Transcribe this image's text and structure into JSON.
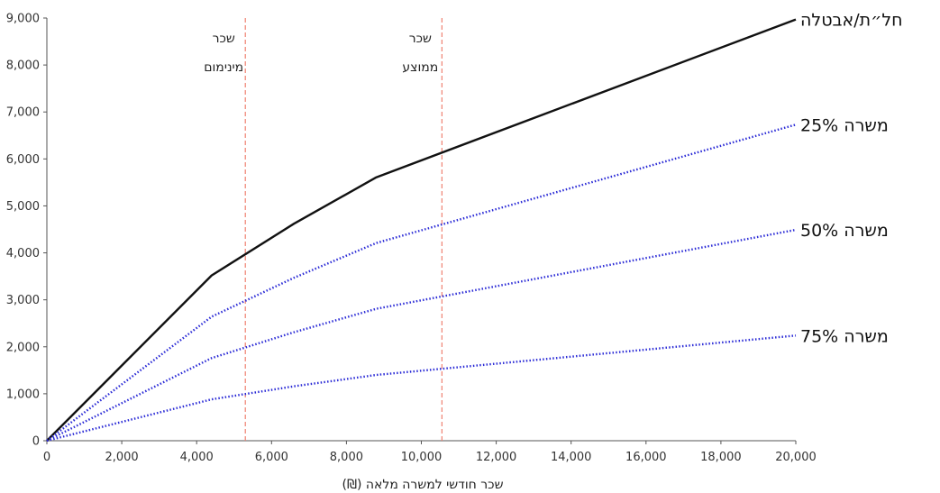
{
  "chart_data": {
    "type": "line",
    "title": "",
    "xlabel": "שכר חודשי למשרה מלאה (₪)",
    "ylabel": "",
    "xlim": [
      0,
      20000
    ],
    "ylim": [
      0,
      9000
    ],
    "x_ticks": [
      0,
      2000,
      4000,
      6000,
      8000,
      10000,
      12000,
      14000,
      16000,
      18000,
      20000
    ],
    "x_tick_labels": [
      "0",
      "2,000",
      "4,000",
      "6,000",
      "8,000",
      "10,000",
      "12,000",
      "14,000",
      "16,000",
      "18,000",
      "20,000"
    ],
    "y_ticks": [
      0,
      1000,
      2000,
      3000,
      4000,
      5000,
      6000,
      7000,
      8000,
      9000
    ],
    "y_tick_labels": [
      "0",
      "1,000",
      "2,000",
      "3,000",
      "4,000",
      "5,000",
      "6,000",
      "7,000",
      "8,000",
      "9,000"
    ],
    "grid": false,
    "series": [
      {
        "name": "חל״ת/אבטלה",
        "color": "#111111",
        "style": "solid",
        "x": [
          0,
          4400,
          6600,
          8800,
          20000
        ],
        "y": [
          0,
          3520,
          4620,
          5610,
          8970
        ]
      },
      {
        "name": "25% משרה",
        "color": "#2a2ad6",
        "style": "dotted",
        "x": [
          0,
          4400,
          6600,
          8800,
          20000
        ],
        "y": [
          0,
          2640,
          3470,
          4210,
          6730
        ]
      },
      {
        "name": "50% משרה",
        "color": "#2a2ad6",
        "style": "dotted",
        "x": [
          0,
          4400,
          6600,
          8800,
          20000
        ],
        "y": [
          0,
          1760,
          2310,
          2810,
          4490
        ]
      },
      {
        "name": "75% משרה",
        "color": "#2a2ad6",
        "style": "dotted",
        "x": [
          0,
          4400,
          6600,
          8800,
          20000
        ],
        "y": [
          0,
          880,
          1160,
          1400,
          2240
        ]
      }
    ],
    "vertical_lines": [
      {
        "x": 5300,
        "label_line1": "שכר",
        "label_line2": "מינימום",
        "color": "#f08070"
      },
      {
        "x": 10550,
        "label_line1": "שכר",
        "label_line2": "ממוצע",
        "color": "#f08070"
      }
    ]
  }
}
